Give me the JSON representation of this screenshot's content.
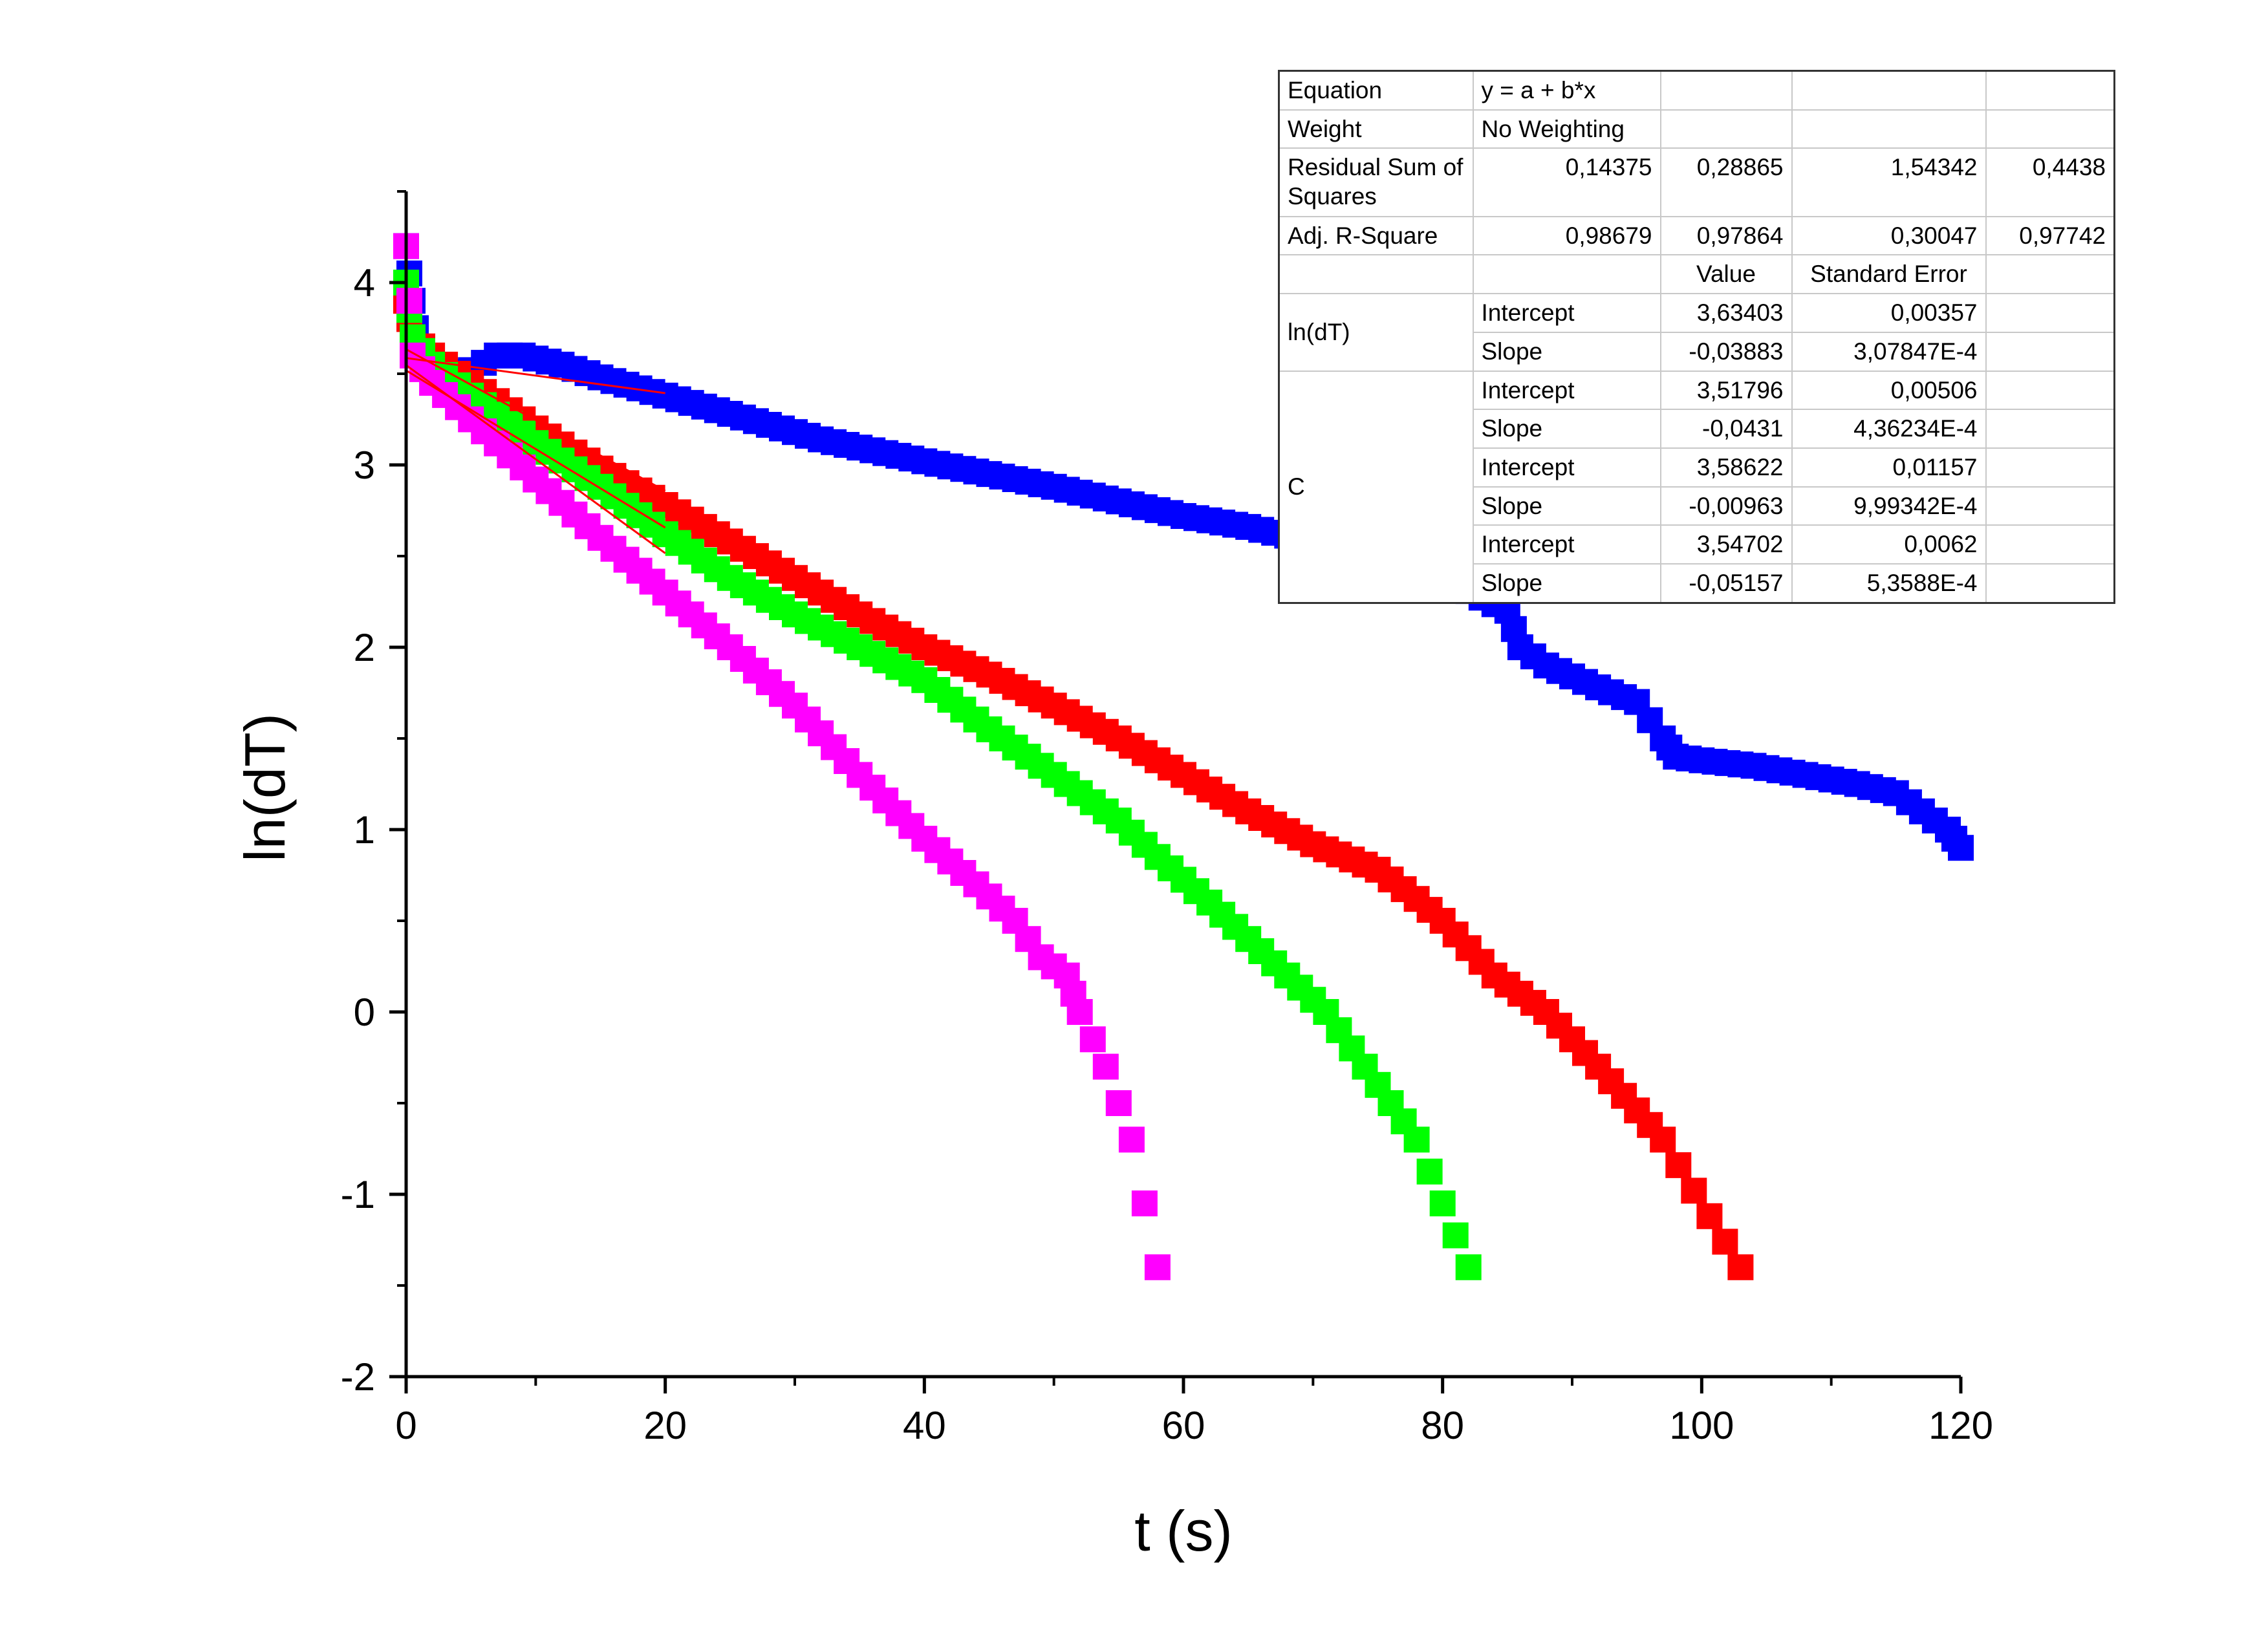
{
  "chart_data": {
    "type": "scatter",
    "xlabel": "t (s)",
    "ylabel": "ln(dT)",
    "xlim": [
      0,
      120
    ],
    "ylim": [
      -2,
      4.5
    ],
    "x_ticks": [
      0,
      20,
      40,
      60,
      80,
      100,
      120
    ],
    "y_ticks": [
      -2,
      -1,
      0,
      1,
      2,
      3,
      4
    ],
    "x_tick_labels": [
      "0",
      "20",
      "40",
      "60",
      "80",
      "100",
      "120"
    ],
    "y_tick_labels": [
      "-2",
      "-1",
      "0",
      "1",
      "2",
      "3",
      "4"
    ],
    "grid": false,
    "series": [
      {
        "color": "#0000ff",
        "points": [
          [
            0,
            4.2
          ],
          [
            0.5,
            3.9
          ],
          [
            1,
            3.6
          ],
          [
            3,
            3.5
          ],
          [
            5,
            3.52
          ],
          [
            7,
            3.6
          ],
          [
            9,
            3.6
          ],
          [
            12,
            3.55
          ],
          [
            15,
            3.48
          ],
          [
            18,
            3.42
          ],
          [
            20,
            3.38
          ],
          [
            24,
            3.3
          ],
          [
            28,
            3.22
          ],
          [
            32,
            3.14
          ],
          [
            36,
            3.08
          ],
          [
            40,
            3.02
          ],
          [
            45,
            2.95
          ],
          [
            50,
            2.88
          ],
          [
            55,
            2.8
          ],
          [
            60,
            2.72
          ],
          [
            65,
            2.66
          ],
          [
            70,
            2.58
          ],
          [
            75,
            2.5
          ],
          [
            80,
            2.38
          ],
          [
            85,
            2.2
          ],
          [
            86,
            2.0
          ],
          [
            88,
            1.9
          ],
          [
            92,
            1.78
          ],
          [
            95,
            1.7
          ],
          [
            97,
            1.5
          ],
          [
            98,
            1.4
          ],
          [
            100,
            1.38
          ],
          [
            104,
            1.35
          ],
          [
            108,
            1.3
          ],
          [
            112,
            1.25
          ],
          [
            115,
            1.2
          ],
          [
            117,
            1.1
          ],
          [
            119,
            1.0
          ],
          [
            120,
            0.9
          ]
        ]
      },
      {
        "color": "#ff0000",
        "points": [
          [
            0,
            3.9
          ],
          [
            0.5,
            3.7
          ],
          [
            2,
            3.6
          ],
          [
            5,
            3.45
          ],
          [
            10,
            3.2
          ],
          [
            15,
            2.98
          ],
          [
            20,
            2.78
          ],
          [
            25,
            2.58
          ],
          [
            30,
            2.38
          ],
          [
            35,
            2.18
          ],
          [
            40,
            2.0
          ],
          [
            45,
            1.85
          ],
          [
            50,
            1.68
          ],
          [
            55,
            1.5
          ],
          [
            60,
            1.3
          ],
          [
            65,
            1.1
          ],
          [
            70,
            0.92
          ],
          [
            75,
            0.78
          ],
          [
            78,
            0.62
          ],
          [
            80,
            0.5
          ],
          [
            84,
            0.2
          ],
          [
            88,
            0.0
          ],
          [
            92,
            -0.3
          ],
          [
            97,
            -0.7
          ],
          [
            103,
            -1.4
          ]
        ]
      },
      {
        "color": "#00ff00",
        "points": [
          [
            0,
            4.0
          ],
          [
            0.5,
            3.7
          ],
          [
            2,
            3.55
          ],
          [
            5,
            3.38
          ],
          [
            10,
            3.12
          ],
          [
            15,
            2.88
          ],
          [
            20,
            2.62
          ],
          [
            25,
            2.38
          ],
          [
            30,
            2.18
          ],
          [
            35,
            2.0
          ],
          [
            40,
            1.82
          ],
          [
            45,
            1.55
          ],
          [
            50,
            1.3
          ],
          [
            55,
            1.05
          ],
          [
            58,
            0.85
          ],
          [
            62,
            0.6
          ],
          [
            65,
            0.4
          ],
          [
            68,
            0.2
          ],
          [
            71,
            0.0
          ],
          [
            74,
            -0.3
          ],
          [
            78,
            -0.7
          ],
          [
            82,
            -1.4
          ]
        ]
      },
      {
        "color": "#ff00ff",
        "points": [
          [
            0,
            4.2
          ],
          [
            0.5,
            3.6
          ],
          [
            2,
            3.45
          ],
          [
            5,
            3.25
          ],
          [
            10,
            2.92
          ],
          [
            15,
            2.6
          ],
          [
            20,
            2.3
          ],
          [
            25,
            2.0
          ],
          [
            30,
            1.68
          ],
          [
            35,
            1.3
          ],
          [
            40,
            0.95
          ],
          [
            44,
            0.7
          ],
          [
            47,
            0.5
          ],
          [
            49,
            0.3
          ],
          [
            51,
            0.2
          ],
          [
            52,
            0.0
          ],
          [
            54,
            -0.3
          ],
          [
            56,
            -0.7
          ],
          [
            58,
            -1.4
          ]
        ]
      }
    ],
    "fit_lines": [
      {
        "color": "#ff0000",
        "x": [
          0,
          20
        ],
        "intercept": 3.63403,
        "slope": -0.03883
      },
      {
        "color": "#ff0000",
        "x": [
          0,
          20
        ],
        "intercept": 3.51796,
        "slope": -0.0431
      },
      {
        "color": "#ff0000",
        "x": [
          0,
          20
        ],
        "intercept": 3.58622,
        "slope": -0.00963
      },
      {
        "color": "#ff0000",
        "x": [
          0,
          20
        ],
        "intercept": 3.54702,
        "slope": -0.05157
      }
    ]
  },
  "stats_table": {
    "rows": [
      [
        "Equation",
        "y = a + b*x",
        "",
        "",
        ""
      ],
      [
        "Weight",
        "No Weighting",
        "",
        "",
        ""
      ],
      [
        "Residual Sum of Squares",
        "",
        "0,14375",
        "0,28865",
        "1,54342",
        "0,4438"
      ],
      [
        "Adj. R-Square",
        "",
        "0,98679",
        "0,97864",
        "0,30047",
        "0,97742"
      ]
    ],
    "labels": {
      "equation": "Equation",
      "equation_value": "y = a + b*x",
      "weight": "Weight",
      "weight_value": "No Weighting",
      "rss": "Residual Sum of Squares",
      "adj_r2": "Adj. R-Square",
      "value_header": "Value",
      "stderr_header": "Standard Error",
      "group_lndT": "ln(dT)",
      "group_C": "C"
    },
    "rss_values": [
      "0,14375",
      "0,28865",
      "1,54342",
      "0,4438"
    ],
    "adj_r2_values": [
      "0,98679",
      "0,97864",
      "0,30047",
      "0,97742"
    ],
    "params": [
      {
        "name": "Intercept",
        "value": "3,63403",
        "stderr": "0,00357"
      },
      {
        "name": "Slope",
        "value": "-0,03883",
        "stderr": "3,07847E-4"
      },
      {
        "name": "Intercept",
        "value": "3,51796",
        "stderr": "0,00506"
      },
      {
        "name": "Slope",
        "value": "-0,0431",
        "stderr": "4,36234E-4"
      },
      {
        "name": "Intercept",
        "value": "3,58622",
        "stderr": "0,01157"
      },
      {
        "name": "Slope",
        "value": "-0,00963",
        "stderr": "9,99342E-4"
      },
      {
        "name": "Intercept",
        "value": "3,54702",
        "stderr": "0,0062"
      },
      {
        "name": "Slope",
        "value": "-0,05157",
        "stderr": "5,3588E-4"
      }
    ]
  }
}
